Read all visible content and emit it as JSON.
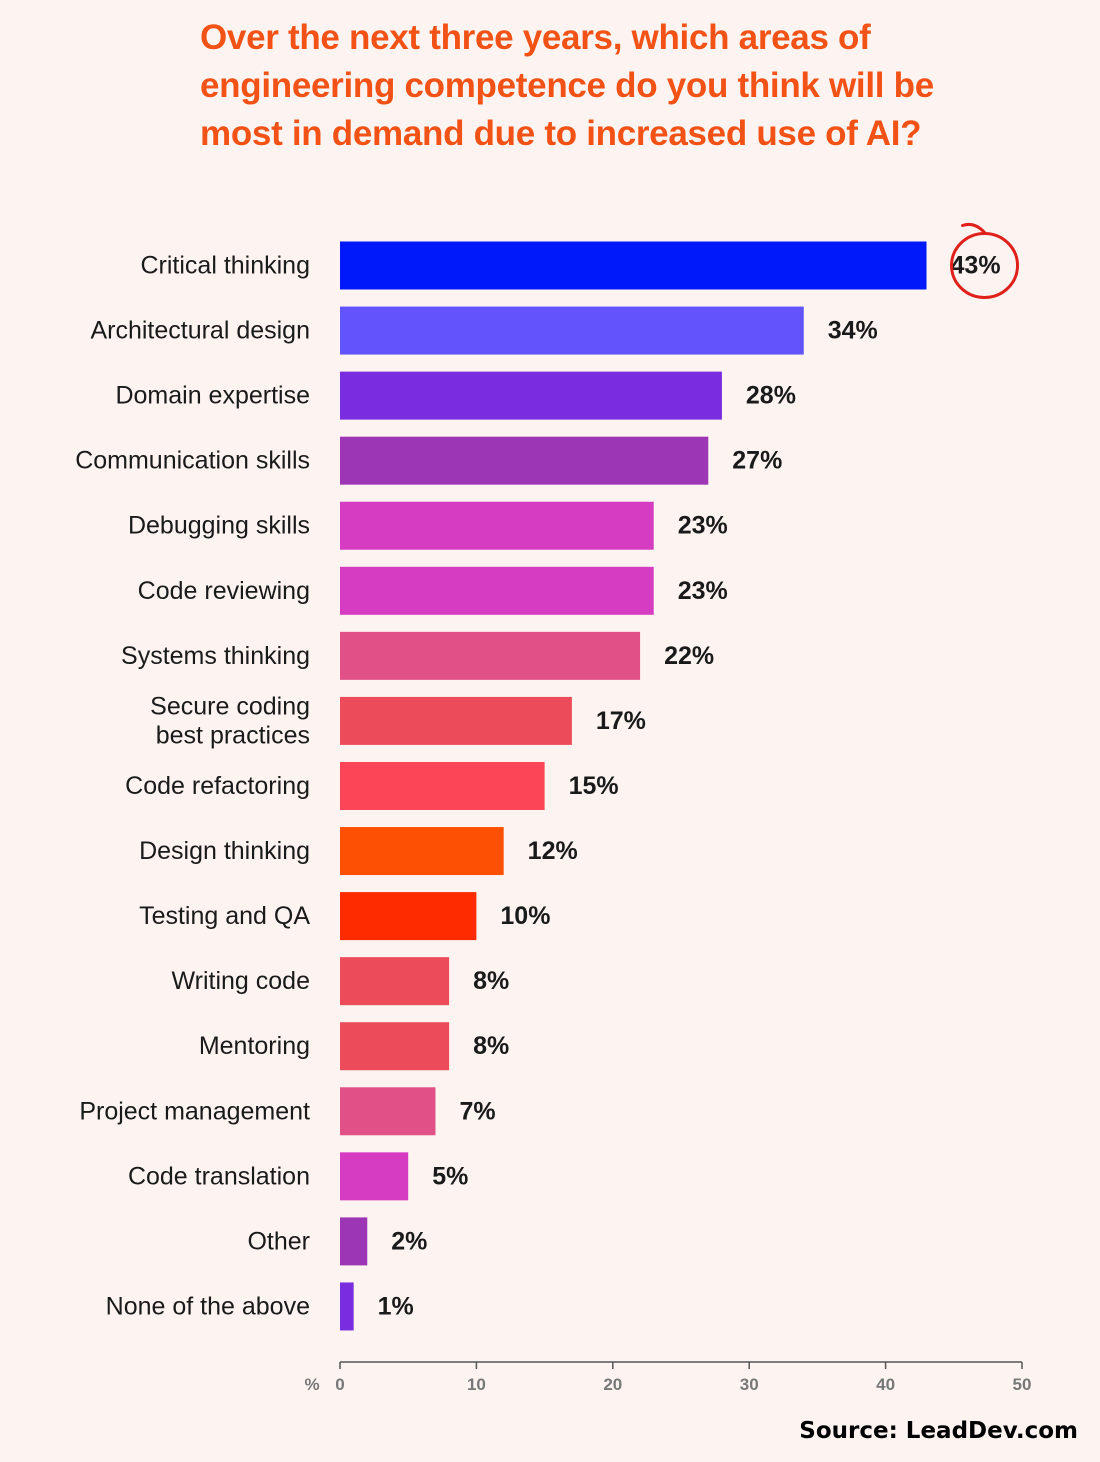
{
  "title_lines": [
    "Over the next three years, which areas of",
    "engineering competence do you think will be",
    "most in demand due to increased use of AI?"
  ],
  "source": "Source: LeadDev.com",
  "colors": {
    "title": "#f25216",
    "background": "#fdf4f1",
    "highlight_circle": "#e0201b",
    "text": "#1a1a1a",
    "axis": "#555555"
  },
  "chart_data": {
    "type": "bar",
    "orientation": "horizontal",
    "title": "Over the next three years, which areas of engineering competence do you think will be most in demand due to increased use of AI?",
    "xlabel": "%",
    "ylabel": "",
    "xlim": [
      0,
      50
    ],
    "x_ticks": [
      0,
      10,
      20,
      30,
      40,
      50
    ],
    "grid": false,
    "categories": [
      "Critical thinking",
      "Architectural design",
      "Domain expertise",
      "Communication skills",
      "Debugging skills",
      "Code reviewing",
      "Systems thinking",
      "Secure coding best practices",
      "Code refactoring",
      "Design thinking",
      "Testing and QA",
      "Writing code",
      "Mentoring",
      "Project management",
      "Code translation",
      "Other",
      "None of the above"
    ],
    "category_lines": [
      [
        "Critical thinking"
      ],
      [
        "Architectural design"
      ],
      [
        "Domain expertise"
      ],
      [
        "Communication skills"
      ],
      [
        "Debugging skills"
      ],
      [
        "Code reviewing"
      ],
      [
        "Systems thinking"
      ],
      [
        "Secure coding",
        "best practices"
      ],
      [
        "Code refactoring"
      ],
      [
        "Design thinking"
      ],
      [
        "Testing and QA"
      ],
      [
        "Writing code"
      ],
      [
        "Mentoring"
      ],
      [
        "Project management"
      ],
      [
        "Code translation"
      ],
      [
        "Other"
      ],
      [
        "None of the above"
      ]
    ],
    "values": [
      43,
      34,
      28,
      27,
      23,
      23,
      22,
      17,
      15,
      12,
      10,
      8,
      8,
      7,
      5,
      2,
      1
    ],
    "value_labels": [
      "43%",
      "34%",
      "28%",
      "27%",
      "23%",
      "23%",
      "22%",
      "17%",
      "15%",
      "12%",
      "10%",
      "8%",
      "8%",
      "7%",
      "5%",
      "2%",
      "1%"
    ],
    "bar_colors": [
      "#0019fb",
      "#6253fd",
      "#7a2cdf",
      "#9c36b4",
      "#d53cc1",
      "#d53cc1",
      "#e15187",
      "#ec4c59",
      "#fd4558",
      "#fe5003",
      "#fe2b00",
      "#ec4c59",
      "#ec4c59",
      "#e15187",
      "#d53cc1",
      "#9c36b4",
      "#7a2cdf"
    ],
    "highlighted_index": 0
  }
}
